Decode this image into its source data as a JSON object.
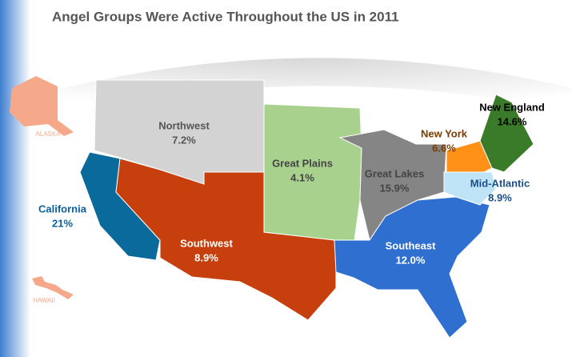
{
  "title": "Angel Groups Were Active Throughout the US in 2011",
  "regions": [
    {
      "name": "Northwest",
      "share": "7.2%",
      "color": "#d3d3d3"
    },
    {
      "name": "California",
      "share": "21%",
      "color": "#0a6a9c"
    },
    {
      "name": "Southwest",
      "share": "8.9%",
      "color": "#c63f0c"
    },
    {
      "name": "Great Plains",
      "share": "4.1%",
      "color": "#a9d18e"
    },
    {
      "name": "Great Lakes",
      "share": "15.9%",
      "color": "#858585"
    },
    {
      "name": "Southeast",
      "share": "12.0%",
      "color": "#2f6fd0"
    },
    {
      "name": "New York",
      "share": "6.6%",
      "color": "#ff9018"
    },
    {
      "name": "New England",
      "share": "14.6%",
      "color": "#3a7b2a"
    },
    {
      "name": "Mid-Atlantic",
      "share": "8.9%",
      "color": "#bfe4f7"
    }
  ],
  "others": [
    {
      "name": "ALASKA",
      "color": "#f6a98a"
    },
    {
      "name": "HAWAII",
      "color": "#f6a98a"
    }
  ]
}
